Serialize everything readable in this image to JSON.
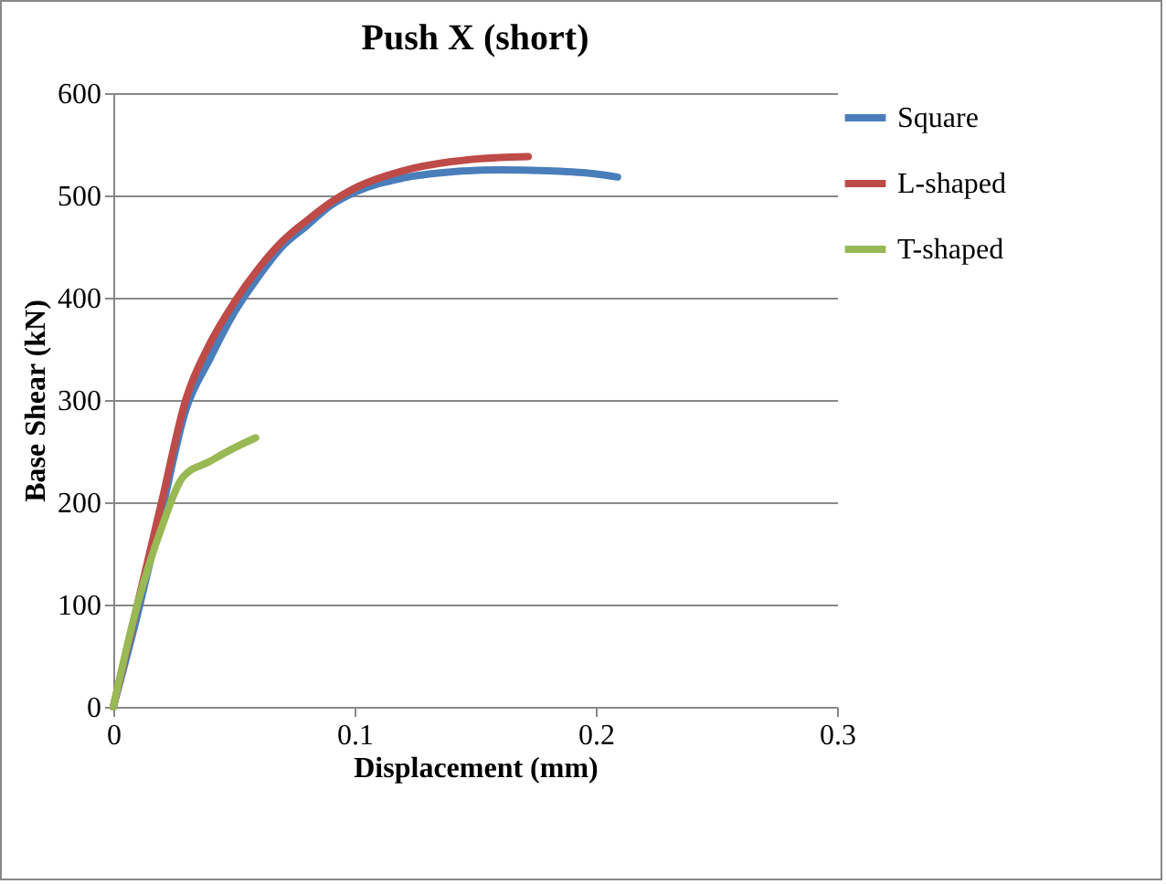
{
  "chart_data": {
    "type": "line",
    "title": "Push X (short)",
    "xlabel": "Displacement (mm)",
    "ylabel": "Base Shear (kN)",
    "xlim": [
      0,
      0.3
    ],
    "xticks": [
      0,
      0.1,
      0.2,
      0.3
    ],
    "ylim": [
      0,
      600
    ],
    "yticks": [
      0,
      100,
      200,
      300,
      400,
      500,
      600
    ],
    "grid": "y",
    "legend": "right",
    "marker": "none",
    "series": [
      {
        "name": "Square",
        "color": "#4a7ebb",
        "x": [
          0,
          0.01,
          0.02,
          0.03,
          0.04,
          0.05,
          0.06,
          0.07,
          0.08,
          0.09,
          0.1,
          0.12,
          0.14,
          0.16,
          0.18,
          0.2,
          0.209
        ],
        "values": [
          0,
          90,
          190,
          290,
          340,
          385,
          420,
          450,
          470,
          490,
          503,
          517,
          523,
          525,
          524,
          521,
          518
        ]
      },
      {
        "name": "L-shaped",
        "color": "#be4b48",
        "x": [
          0,
          0.01,
          0.02,
          0.03,
          0.04,
          0.05,
          0.06,
          0.07,
          0.08,
          0.09,
          0.1,
          0.12,
          0.14,
          0.16,
          0.172
        ],
        "values": [
          0,
          100,
          200,
          300,
          355,
          395,
          428,
          455,
          475,
          493,
          507,
          524,
          533,
          537,
          538
        ]
      },
      {
        "name": "T-shaped",
        "color": "#98b954",
        "x": [
          0,
          0.01,
          0.02,
          0.029,
          0.04,
          0.05,
          0.059
        ],
        "values": [
          0,
          100,
          175,
          225,
          240,
          253,
          263
        ]
      }
    ]
  }
}
